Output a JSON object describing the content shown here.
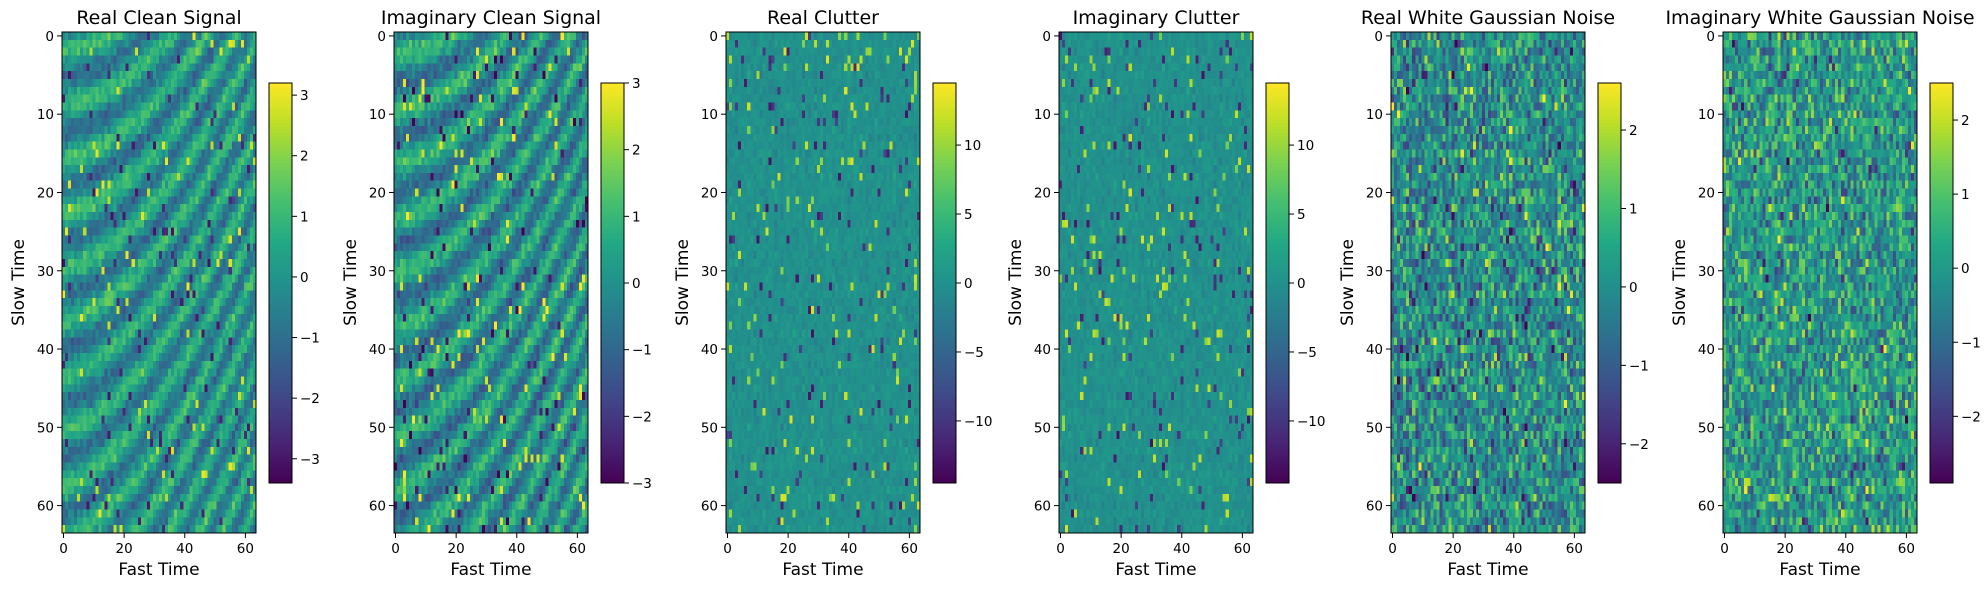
{
  "chart_data": [
    {
      "type": "heatmap",
      "title": "Real Clean Signal",
      "xlabel": "Fast Time",
      "ylabel": "Slow Time",
      "x_ticks": [
        "0",
        "20",
        "40",
        "60"
      ],
      "y_ticks": [
        "0",
        "10",
        "20",
        "30",
        "40",
        "50",
        "60"
      ],
      "xlim": [
        0,
        64
      ],
      "ylim": [
        64,
        0
      ],
      "colormap": "viridis",
      "colorbar_range": [
        -3.4,
        3.2
      ],
      "colorbar_ticks": [
        "3",
        "2",
        "1",
        "0",
        "−1",
        "−2",
        "−3"
      ],
      "colorbar_tick_values": [
        3,
        2,
        1,
        0,
        -1,
        -2,
        -3
      ],
      "pattern": "diagonal-chirp",
      "seed": 11
    },
    {
      "type": "heatmap",
      "title": "Imaginary Clean Signal",
      "xlabel": "Fast Time",
      "ylabel": "Slow Time",
      "x_ticks": [
        "0",
        "20",
        "40",
        "60"
      ],
      "y_ticks": [
        "0",
        "10",
        "20",
        "30",
        "40",
        "50",
        "60"
      ],
      "xlim": [
        0,
        64
      ],
      "ylim": [
        64,
        0
      ],
      "colormap": "viridis",
      "colorbar_range": [
        -3.0,
        3.0
      ],
      "colorbar_ticks": [
        "3",
        "2",
        "1",
        "0",
        "−1",
        "−2",
        "−3"
      ],
      "colorbar_tick_values": [
        3,
        2,
        1,
        0,
        -1,
        -2,
        -3
      ],
      "pattern": "diagonal-chirp",
      "seed": 23
    },
    {
      "type": "heatmap",
      "title": "Real Clutter",
      "xlabel": "Fast Time",
      "ylabel": "Slow Time",
      "x_ticks": [
        "0",
        "20",
        "40",
        "60"
      ],
      "y_ticks": [
        "0",
        "10",
        "20",
        "30",
        "40",
        "50",
        "60"
      ],
      "xlim": [
        0,
        64
      ],
      "ylim": [
        64,
        0
      ],
      "colormap": "viridis",
      "colorbar_range": [
        -14.5,
        14.5
      ],
      "colorbar_ticks": [
        "10",
        "5",
        "0",
        "−5",
        "−10"
      ],
      "colorbar_tick_values": [
        10,
        5,
        0,
        -5,
        -10
      ],
      "pattern": "sparse-clutter",
      "seed": 37
    },
    {
      "type": "heatmap",
      "title": "Imaginary Clutter",
      "xlabel": "Fast Time",
      "ylabel": "Slow Time",
      "x_ticks": [
        "0",
        "20",
        "40",
        "60"
      ],
      "y_ticks": [
        "0",
        "10",
        "20",
        "30",
        "40",
        "50",
        "60"
      ],
      "xlim": [
        0,
        64
      ],
      "ylim": [
        64,
        0
      ],
      "colormap": "viridis",
      "colorbar_range": [
        -14.5,
        14.5
      ],
      "colorbar_ticks": [
        "10",
        "5",
        "0",
        "−5",
        "−10"
      ],
      "colorbar_tick_values": [
        10,
        5,
        0,
        -5,
        -10
      ],
      "pattern": "sparse-clutter",
      "seed": 53
    },
    {
      "type": "heatmap",
      "title": "Real White Gaussian Noise",
      "xlabel": "Fast Time",
      "ylabel": "Slow Time",
      "x_ticks": [
        "0",
        "20",
        "40",
        "60"
      ],
      "y_ticks": [
        "0",
        "10",
        "20",
        "30",
        "40",
        "50",
        "60"
      ],
      "xlim": [
        0,
        64
      ],
      "ylim": [
        64,
        0
      ],
      "colormap": "viridis",
      "colorbar_range": [
        -2.5,
        2.6
      ],
      "colorbar_ticks": [
        "2",
        "1",
        "0",
        "−1",
        "−2"
      ],
      "colorbar_tick_values": [
        2,
        1,
        0,
        -1,
        -2
      ],
      "pattern": "white-noise",
      "seed": 71
    },
    {
      "type": "heatmap",
      "title": "Imaginary White Gaussian Noise",
      "xlabel": "Fast Time",
      "ylabel": "Slow Time",
      "x_ticks": [
        "0",
        "20",
        "40",
        "60"
      ],
      "y_ticks": [
        "0",
        "10",
        "20",
        "30",
        "40",
        "50",
        "60"
      ],
      "xlim": [
        0,
        64
      ],
      "ylim": [
        64,
        0
      ],
      "colormap": "viridis",
      "colorbar_range": [
        -2.9,
        2.5
      ],
      "colorbar_ticks": [
        "2",
        "1",
        "0",
        "−1",
        "−2"
      ],
      "colorbar_tick_values": [
        2,
        1,
        0,
        -1,
        -2
      ],
      "pattern": "white-noise",
      "seed": 89
    }
  ]
}
